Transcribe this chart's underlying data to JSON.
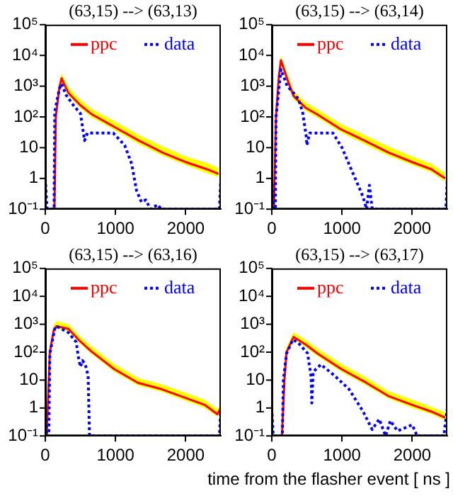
{
  "chart_data": [
    {
      "type": "line",
      "title": "(63,15) --> (63,13)",
      "log": "y",
      "grid": false,
      "legend": "top right",
      "xlim": [
        0,
        2500
      ],
      "xticks": [
        0,
        1000,
        2000
      ],
      "ylim": [
        0.1,
        100000
      ],
      "yticks": [
        {
          "value": 0.1,
          "label": "10⁻¹"
        },
        {
          "value": 1,
          "label": "1"
        },
        {
          "value": 10,
          "label": "10"
        },
        {
          "value": 100,
          "label": "10²"
        },
        {
          "value": 1000,
          "label": "10³"
        },
        {
          "value": 10000,
          "label": "10⁴"
        },
        {
          "value": 100000,
          "label": "10⁵"
        }
      ],
      "series": [
        {
          "name": "ppc",
          "color": "#ff0000",
          "line_style": "solid",
          "x": [
            130,
            150,
            200,
            233,
            267,
            333,
            500,
            667,
            1000,
            1333,
            1667,
            2000,
            2300,
            2467
          ],
          "values": [
            0.1,
            100,
            900,
            1800,
            1200,
            590,
            240,
            120,
            45,
            17,
            7,
            3.4,
            2,
            1.4
          ],
          "upper": [
            0.1,
            150,
            1400,
            2600,
            1800,
            900,
            360,
            180,
            70,
            26,
            11,
            5.2,
            3.2,
            2.2
          ],
          "lower": [
            0.1,
            80,
            700,
            1400,
            950,
            470,
            190,
            95,
            36,
            13,
            5.5,
            2.7,
            1.5,
            1.1
          ]
        },
        {
          "name": "data",
          "color": "#0000ff",
          "line_style": "dotted",
          "x": [
            0,
            25,
            125,
            135,
            200,
            230,
            300,
            400,
            500,
            560,
            600,
            700,
            967,
            1130,
            1230,
            1300,
            1370,
            1430,
            1500,
            1600,
            1650,
            2480,
            2500
          ],
          "values": [
            1,
            0.1,
            0.1,
            150,
            800,
            1200,
            500,
            240,
            130,
            17,
            30,
            30,
            30,
            12,
            3,
            0.4,
            0.17,
            0.2,
            0.1,
            0.14,
            0.1,
            0.1,
            1
          ]
        }
      ]
    },
    {
      "type": "line",
      "title": "(63,15) --> (63,14)",
      "log": "y",
      "grid": false,
      "legend": "top right",
      "xlim": [
        0,
        2500
      ],
      "xticks": [
        0,
        1000,
        2000
      ],
      "ylim": [
        0.1,
        100000
      ],
      "yticks": [
        {
          "value": 0.1,
          "label": "10⁻¹"
        },
        {
          "value": 1,
          "label": "1"
        },
        {
          "value": 10,
          "label": "10"
        },
        {
          "value": 100,
          "label": "10²"
        },
        {
          "value": 1000,
          "label": "10³"
        },
        {
          "value": 10000,
          "label": "10⁴"
        },
        {
          "value": 100000,
          "label": "10⁵"
        }
      ],
      "series": [
        {
          "name": "ppc",
          "color": "#ff0000",
          "line_style": "solid",
          "x": [
            30,
            60,
            100,
            130,
            220,
            310,
            480,
            650,
            980,
            1320,
            1660,
            2000,
            2270,
            2470
          ],
          "values": [
            0.1,
            100,
            2000,
            7000,
            1700,
            480,
            200,
            120,
            40,
            17,
            7,
            3.4,
            2,
            1
          ],
          "upper": [
            0.1,
            150,
            3000,
            10000,
            2600,
            720,
            300,
            180,
            60,
            26,
            11,
            5.2,
            3,
            1.5
          ],
          "lower": [
            0.1,
            80,
            1600,
            5600,
            1400,
            380,
            160,
            95,
            32,
            13,
            5.5,
            2.7,
            1.6,
            0.8
          ]
        },
        {
          "name": "data",
          "color": "#0000ff",
          "line_style": "dotted",
          "x": [
            0,
            25,
            50,
            60,
            130,
            220,
            310,
            380,
            440,
            490,
            500,
            540,
            870,
            1000,
            1130,
            1230,
            1300,
            1350,
            1390,
            1430,
            2480,
            2500
          ],
          "values": [
            1,
            0.1,
            0.1,
            100,
            3500,
            1000,
            600,
            380,
            140,
            24,
            12,
            30,
            30,
            10,
            2,
            0.6,
            0.25,
            0.1,
            0.6,
            0.1,
            0.1,
            1
          ]
        }
      ]
    },
    {
      "type": "line",
      "title": "(63,15) --> (63,16)",
      "log": "y",
      "grid": false,
      "legend": "top right",
      "xlim": [
        0,
        2500
      ],
      "xticks": [
        0,
        1000,
        2000
      ],
      "ylim": [
        0.1,
        100000
      ],
      "yticks": [
        {
          "value": 0.1,
          "label": "10⁻¹"
        },
        {
          "value": 1,
          "label": "1"
        },
        {
          "value": 10,
          "label": "10"
        },
        {
          "value": 100,
          "label": "10²"
        },
        {
          "value": 1000,
          "label": "10³"
        },
        {
          "value": 10000,
          "label": "10⁴"
        },
        {
          "value": 100000,
          "label": "10⁵"
        }
      ],
      "series": [
        {
          "name": "ppc",
          "color": "#ff0000",
          "line_style": "solid",
          "x": [
            20,
            65,
            120,
            160,
            330,
            480,
            650,
            980,
            1320,
            1660,
            2000,
            2270,
            2450,
            2500
          ],
          "values": [
            0.1,
            100,
            600,
            850,
            690,
            270,
            110,
            25,
            8,
            4.7,
            2.3,
            1.3,
            0.6,
            1
          ],
          "upper": [
            0.1,
            150,
            900,
            1300,
            1000,
            400,
            170,
            38,
            12,
            7,
            3.5,
            2,
            0.9,
            1.5
          ],
          "lower": [
            0.1,
            80,
            480,
            680,
            550,
            220,
            90,
            20,
            6.4,
            3.8,
            1.8,
            1,
            0.5,
            0.8
          ]
        },
        {
          "name": "data",
          "color": "#0000ff",
          "line_style": "dotted",
          "x": [
            0,
            20,
            50,
            65,
            140,
            160,
            330,
            440,
            470,
            500,
            530,
            570,
            610,
            630,
            2480,
            2500
          ],
          "values": [
            1,
            0.1,
            0.1,
            90,
            800,
            850,
            500,
            230,
            70,
            30,
            50,
            36,
            14,
            0.1,
            0.1,
            1
          ]
        }
      ]
    },
    {
      "type": "line",
      "title": "(63,15) --> (63,17)",
      "xlabel": "time from the flasher event [ ns ]",
      "log": "y",
      "grid": false,
      "legend": "top right",
      "xlim": [
        0,
        2500
      ],
      "xticks": [
        0,
        1000,
        2000
      ],
      "ylim": [
        0.1,
        100000
      ],
      "yticks": [
        {
          "value": 0.1,
          "label": "10⁻¹"
        },
        {
          "value": 1,
          "label": "1"
        },
        {
          "value": 10,
          "label": "10"
        },
        {
          "value": 100,
          "label": "10²"
        },
        {
          "value": 1000,
          "label": "10³"
        },
        {
          "value": 10000,
          "label": "10⁴"
        },
        {
          "value": 100000,
          "label": "10⁵"
        }
      ],
      "series": [
        {
          "name": "ppc",
          "color": "#ff0000",
          "line_style": "solid",
          "x": [
            145,
            180,
            210,
            310,
            480,
            650,
            990,
            1330,
            1660,
            2000,
            2270,
            2470
          ],
          "values": [
            0.1,
            10,
            100,
            350,
            190,
            90,
            25,
            8.5,
            2.7,
            1.3,
            0.75,
            0.45
          ],
          "upper": [
            0.1,
            15,
            150,
            520,
            280,
            135,
            38,
            13,
            4,
            2,
            1.1,
            0.7
          ],
          "lower": [
            0.1,
            8,
            80,
            280,
            150,
            72,
            20,
            6.8,
            2.2,
            1,
            0.6,
            0.36
          ]
        },
        {
          "name": "data",
          "color": "#0000ff",
          "line_style": "dotted",
          "x": [
            0,
            20,
            150,
            165,
            210,
            300,
            375,
            510,
            560,
            570,
            590,
            700,
            900,
            1100,
            1300,
            1430,
            1530,
            1620,
            1690,
            1790,
            2000,
            2070,
            2450,
            2500
          ],
          "values": [
            1,
            0.1,
            0.1,
            10,
            90,
            280,
            220,
            90,
            13,
            1.5,
            20,
            36,
            14,
            4.7,
            0.75,
            0.17,
            0.4,
            0.1,
            0.35,
            0.15,
            0.25,
            0.1,
            0.1,
            1
          ]
        }
      ]
    }
  ]
}
